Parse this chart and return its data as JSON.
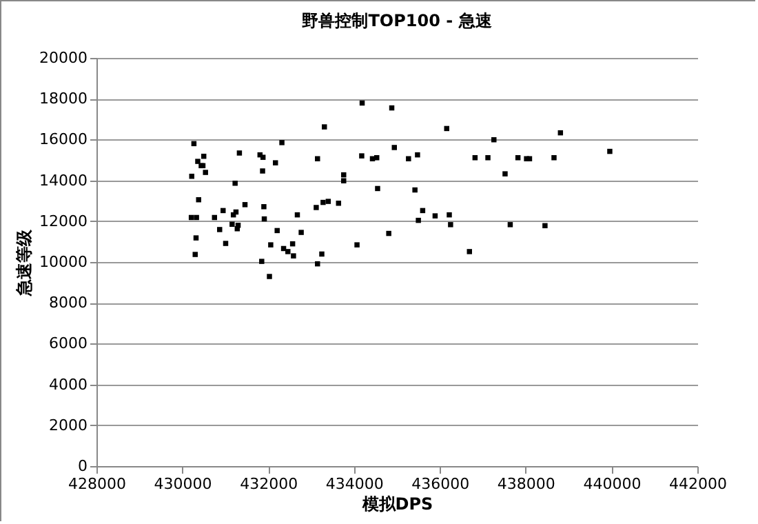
{
  "chart_data": {
    "type": "scatter",
    "title": "野兽控制TOP100 - 急速",
    "xlabel": "模拟DPS",
    "ylabel": "急速等级",
    "x": [
      433310,
      430270,
      430500,
      430360,
      430440,
      430480,
      430220,
      430540,
      431330,
      431810,
      431880,
      432320,
      432170,
      431870,
      433150,
      433760,
      433760,
      431230,
      430380,
      430210,
      430330,
      430750,
      430950,
      431250,
      431190,
      431460,
      431900,
      431910,
      430870,
      431160,
      431300,
      431280,
      430320,
      431010,
      430300,
      432210,
      432060,
      432360,
      432460,
      432570,
      432590,
      432680,
      432770,
      431850,
      432030,
      433150,
      433250,
      433120,
      433280,
      433400,
      433640,
      434070,
      434190,
      434880,
      436160,
      437260,
      434180,
      434430,
      434530,
      434940,
      435270,
      435480,
      436820,
      437120,
      437820,
      438020,
      438090,
      437520,
      434550,
      435420,
      435600,
      435500,
      435890,
      436220,
      436250,
      437640,
      434810,
      436690,
      438810,
      438660,
      439960,
      438450
    ],
    "values": [
      16620,
      15800,
      15180,
      14930,
      14720,
      14720,
      14200,
      14390,
      15340,
      15250,
      15130,
      15850,
      14860,
      14460,
      15060,
      14270,
      13980,
      13860,
      13050,
      12180,
      12180,
      12180,
      12520,
      12450,
      12310,
      12810,
      12710,
      12110,
      11590,
      11850,
      11800,
      11630,
      11180,
      10910,
      10370,
      11540,
      10840,
      10660,
      10510,
      10890,
      10300,
      12310,
      11450,
      10030,
      9290,
      9910,
      10390,
      12670,
      12920,
      12970,
      12880,
      10840,
      17790,
      17550,
      16540,
      15990,
      15200,
      15060,
      15110,
      15610,
      15060,
      15250,
      15110,
      15110,
      15110,
      15060,
      15060,
      14320,
      13600,
      13530,
      12520,
      12040,
      12260,
      12310,
      11830,
      11830,
      11400,
      10510,
      16330,
      15110,
      15420,
      11780
    ],
    "color": "#000000",
    "marker": "square",
    "xlim": [
      428000,
      442000
    ],
    "xticks": [
      428000,
      430000,
      432000,
      434000,
      436000,
      438000,
      440000,
      442000
    ],
    "ylim": [
      0,
      20000
    ],
    "yticks": [
      0,
      2000,
      4000,
      6000,
      8000,
      10000,
      12000,
      14000,
      16000,
      18000,
      20000
    ],
    "grid": "y",
    "legend": false
  }
}
